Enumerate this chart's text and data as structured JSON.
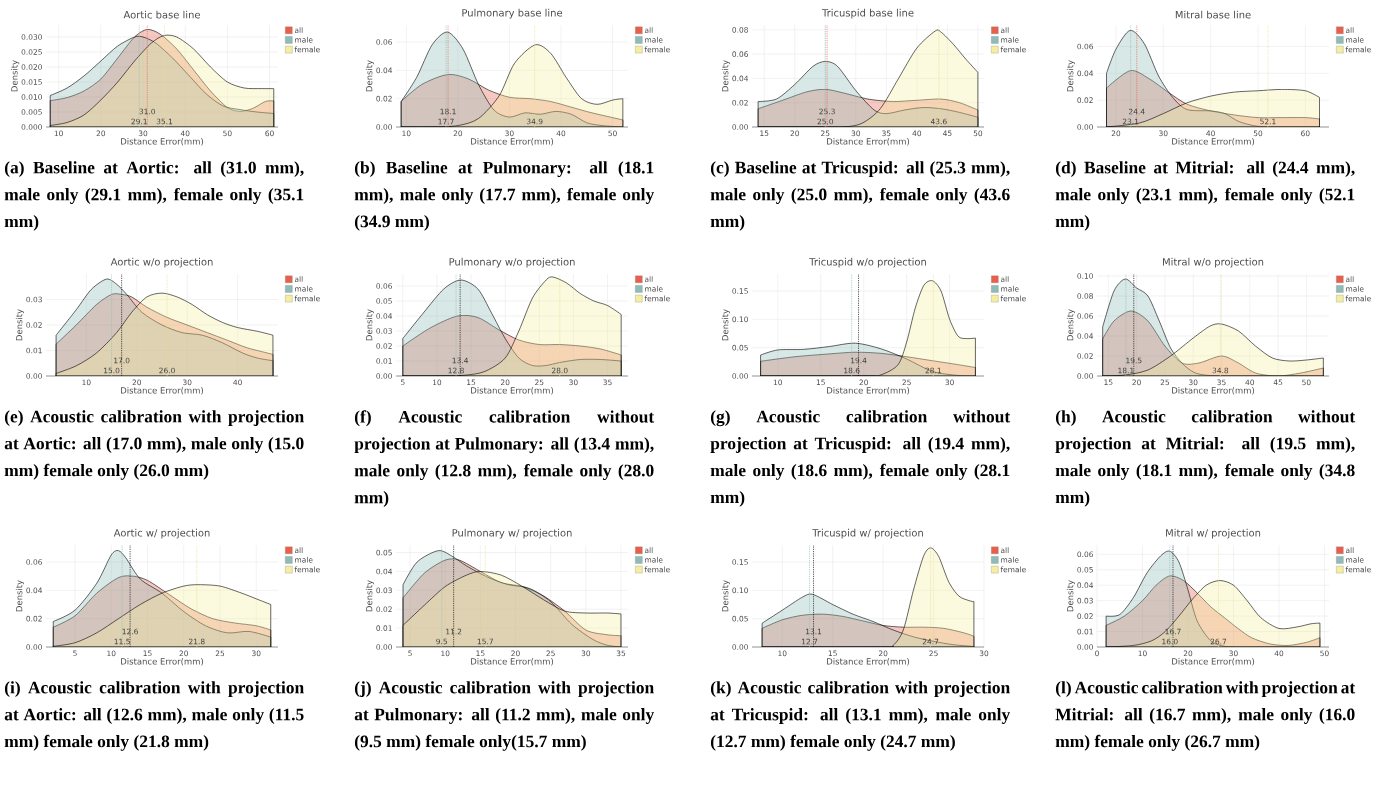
{
  "chart_data": [
    {
      "type": "area",
      "title": "Aortic base line",
      "xlabel": "Distance Error(mm)",
      "ylabel": "Density",
      "xlim": [
        7,
        62
      ],
      "ylim": [
        0,
        0.034
      ],
      "xticks": [
        10,
        20,
        30,
        40,
        50,
        60
      ],
      "yticks": [
        {
          "value": 0,
          "label": "0.000"
        },
        {
          "value": 0.005,
          "label": "0.005"
        },
        {
          "value": 0.01,
          "label": "0.010"
        },
        {
          "value": 0.015,
          "label": "0.015"
        },
        {
          "value": 0.02,
          "label": "0.020"
        },
        {
          "value": 0.025,
          "label": "0.025"
        },
        {
          "value": 0.03,
          "label": "0.030"
        }
      ],
      "grid": true,
      "legend": "top right",
      "series": [
        {
          "name": "all",
          "color": "#e8604c",
          "x": [
            8,
            12,
            16,
            20,
            24,
            28,
            31,
            34,
            38,
            42,
            46,
            50,
            53,
            56,
            59,
            61
          ],
          "values": [
            0.0088,
            0.0098,
            0.012,
            0.016,
            0.023,
            0.03,
            0.0325,
            0.031,
            0.026,
            0.019,
            0.012,
            0.0065,
            0.0052,
            0.0062,
            0.0085,
            0.0087
          ]
        },
        {
          "name": "male",
          "color": "#8fbcb6",
          "x": [
            8,
            12,
            16,
            20,
            24,
            28,
            30,
            33,
            37,
            41,
            45,
            49,
            53,
            57,
            61
          ],
          "values": [
            0.0105,
            0.013,
            0.017,
            0.022,
            0.027,
            0.03,
            0.03,
            0.028,
            0.023,
            0.017,
            0.011,
            0.007,
            0.0058,
            0.005,
            0.0045
          ]
        },
        {
          "name": "female",
          "color": "#f4eea0",
          "x": [
            8,
            12,
            16,
            20,
            24,
            28,
            32,
            35,
            38,
            42,
            46,
            50,
            54,
            58,
            61
          ],
          "values": [
            0.0005,
            0.0015,
            0.004,
            0.009,
            0.015,
            0.022,
            0.028,
            0.0305,
            0.03,
            0.026,
            0.02,
            0.015,
            0.013,
            0.0128,
            0.0128
          ]
        }
      ],
      "ref_lines": [
        {
          "axis": "x",
          "value": 31.0,
          "label": "31.0",
          "color": "#e8604c",
          "line_style": "dotted"
        },
        {
          "axis": "x",
          "value": 29.1,
          "label": "29.1",
          "color": "#8fbcb6",
          "line_style": "dotted"
        },
        {
          "axis": "x",
          "value": 35.1,
          "label": "35.1",
          "color": "#e6e08a",
          "line_style": "dotted"
        }
      ],
      "annotations": [
        "(a) Baseline at Aortic: all (31.0 mm), male only (29.1 mm), female only (35.1 mm)"
      ]
    },
    {
      "type": "area",
      "title": "Pulmonary base line",
      "xlabel": "Distance Error(mm)",
      "ylabel": "Density",
      "xlim": [
        8,
        53
      ],
      "ylim": [
        0,
        0.072
      ],
      "xticks": [
        10,
        20,
        30,
        40,
        50
      ],
      "yticks": [
        {
          "value": 0,
          "label": "0.00"
        },
        {
          "value": 0.02,
          "label": "0.02"
        },
        {
          "value": 0.04,
          "label": "0.04"
        },
        {
          "value": 0.06,
          "label": "0.06"
        }
      ],
      "grid": true,
      "legend": "top right",
      "series": [
        {
          "name": "all",
          "color": "#e8604c",
          "x": [
            9,
            13,
            18,
            22,
            26,
            30,
            34,
            38,
            42,
            46,
            52
          ],
          "values": [
            0.018,
            0.03,
            0.037,
            0.034,
            0.026,
            0.021,
            0.02,
            0.018,
            0.014,
            0.01,
            0.005
          ]
        },
        {
          "name": "male",
          "color": "#8fbcb6",
          "x": [
            9,
            12,
            15,
            18,
            21,
            24,
            27,
            30,
            33,
            36,
            39,
            42,
            45,
            48,
            52
          ],
          "values": [
            0.018,
            0.035,
            0.058,
            0.067,
            0.055,
            0.03,
            0.012,
            0.007,
            0.01,
            0.009,
            0.011,
            0.009,
            0.003,
            0.001,
            0.0
          ]
        },
        {
          "name": "female",
          "color": "#f4eea0",
          "x": [
            9,
            15,
            20,
            24,
            28,
            31,
            35,
            38,
            41,
            44,
            47,
            50,
            52
          ],
          "values": [
            0,
            0,
            0.001,
            0.006,
            0.022,
            0.045,
            0.058,
            0.052,
            0.035,
            0.02,
            0.016,
            0.019,
            0.02
          ]
        }
      ],
      "ref_lines": [
        {
          "axis": "x",
          "value": 18.1,
          "label": "18.1",
          "color": "#e8604c",
          "line_style": "dotted"
        },
        {
          "axis": "x",
          "value": 17.7,
          "label": "17.7",
          "color": "#8fbcb6",
          "line_style": "dotted"
        },
        {
          "axis": "x",
          "value": 34.9,
          "label": "34.9",
          "color": "#e6e08a",
          "line_style": "dotted"
        }
      ],
      "annotations": [
        "(b) Baseline at Pulmonary: all (18.1 mm), male only (17.7 mm), female only (34.9 mm)"
      ]
    },
    {
      "type": "area",
      "title": "Tricuspid base line",
      "xlabel": "Distance Error(mm)",
      "ylabel": "Density",
      "xlim": [
        13,
        51
      ],
      "ylim": [
        0,
        0.084
      ],
      "xticks": [
        15,
        20,
        25,
        30,
        35,
        40,
        45,
        50
      ],
      "yticks": [
        {
          "value": 0,
          "label": "0.00"
        },
        {
          "value": 0.02,
          "label": "0.02"
        },
        {
          "value": 0.04,
          "label": "0.04"
        },
        {
          "value": 0.06,
          "label": "0.06"
        },
        {
          "value": 0.08,
          "label": "0.08"
        }
      ],
      "grid": true,
      "legend": "top right",
      "series": [
        {
          "name": "all",
          "color": "#e8604c",
          "x": [
            14,
            18,
            22,
            25,
            28,
            32,
            36,
            40,
            44,
            47,
            50
          ],
          "values": [
            0.015,
            0.022,
            0.029,
            0.031,
            0.028,
            0.023,
            0.021,
            0.022,
            0.023,
            0.02,
            0.014
          ]
        },
        {
          "name": "male",
          "color": "#8fbcb6",
          "x": [
            14,
            17,
            20,
            23,
            25,
            27,
            30,
            33,
            35,
            38,
            41,
            44,
            47,
            50
          ],
          "values": [
            0.021,
            0.023,
            0.035,
            0.05,
            0.054,
            0.05,
            0.03,
            0.014,
            0.011,
            0.014,
            0.016,
            0.015,
            0.012,
            0.008
          ]
        },
        {
          "name": "female",
          "color": "#f4eea0",
          "x": [
            14,
            24,
            28,
            31,
            34,
            37,
            40,
            43,
            44,
            46,
            48,
            50
          ],
          "values": [
            0,
            0,
            0,
            0.003,
            0.015,
            0.04,
            0.065,
            0.079,
            0.078,
            0.068,
            0.056,
            0.045
          ]
        }
      ],
      "ref_lines": [
        {
          "axis": "x",
          "value": 25.3,
          "label": "25.3",
          "color": "#e8604c",
          "line_style": "dotted"
        },
        {
          "axis": "x",
          "value": 25.0,
          "label": "25.0",
          "color": "#8fbcb6",
          "line_style": "dotted"
        },
        {
          "axis": "x",
          "value": 43.6,
          "label": "43.6",
          "color": "#e6e08a",
          "line_style": "dotted"
        }
      ],
      "annotations": [
        "(c) Baseline at Tricuspid: all (25.3 mm), male only (25.0 mm), female only (43.6 mm)"
      ]
    },
    {
      "type": "area",
      "title": "Mitral base line",
      "xlabel": "Distance Error(mm)",
      "ylabel": "Density",
      "xlim": [
        16,
        65
      ],
      "ylim": [
        0,
        0.076
      ],
      "xticks": [
        20,
        30,
        40,
        50,
        60
      ],
      "yticks": [
        {
          "value": 0,
          "label": "0.00"
        },
        {
          "value": 0.02,
          "label": "0.02"
        },
        {
          "value": 0.04,
          "label": "0.04"
        },
        {
          "value": 0.06,
          "label": "0.06"
        }
      ],
      "grid": true,
      "legend": "top right",
      "series": [
        {
          "name": "all",
          "color": "#e8604c",
          "x": [
            18,
            23,
            27,
            31,
            35,
            40,
            45,
            50,
            55,
            60,
            63
          ],
          "values": [
            0.029,
            0.042,
            0.036,
            0.026,
            0.017,
            0.012,
            0.009,
            0.007,
            0.007,
            0.007,
            0.006
          ]
        },
        {
          "name": "male",
          "color": "#8fbcb6",
          "x": [
            18,
            20,
            23,
            26,
            29,
            32,
            35,
            40,
            43,
            46,
            50,
            55,
            60,
            63
          ],
          "values": [
            0.04,
            0.058,
            0.072,
            0.062,
            0.038,
            0.022,
            0.013,
            0.012,
            0.01,
            0.004,
            0.0005,
            0,
            0,
            0
          ]
        },
        {
          "name": "female",
          "color": "#f4eea0",
          "x": [
            18,
            25,
            30,
            35,
            40,
            45,
            50,
            55,
            60,
            63
          ],
          "values": [
            0.0,
            0.003,
            0.01,
            0.018,
            0.023,
            0.026,
            0.027,
            0.028,
            0.027,
            0.022
          ]
        }
      ],
      "ref_lines": [
        {
          "axis": "x",
          "value": 24.4,
          "label": "24.4",
          "color": "#e8604c",
          "line_style": "dotted"
        },
        {
          "axis": "x",
          "value": 23.1,
          "label": "23.1",
          "color": "#8fbcb6",
          "line_style": "dotted"
        },
        {
          "axis": "x",
          "value": 52.1,
          "label": "52.1",
          "color": "#e6e08a",
          "line_style": "dotted"
        }
      ],
      "annotations": [
        "(d) Baseline at Mitrial: all (24.4 mm), male only (23.1 mm), female only (52.1 mm)"
      ]
    },
    {
      "type": "area",
      "title": "Aortic w/o projection",
      "xlabel": "Distance Error(mm)",
      "ylabel": "Density",
      "xlim": [
        2,
        48
      ],
      "ylim": [
        0,
        0.04
      ],
      "xticks": [
        10,
        20,
        30,
        40
      ],
      "yticks": [
        {
          "value": 0,
          "label": "0.00"
        },
        {
          "value": 0.01,
          "label": "0.01"
        },
        {
          "value": 0.02,
          "label": "0.02"
        },
        {
          "value": 0.03,
          "label": "0.03"
        }
      ],
      "grid": true,
      "legend": "top right",
      "series": [
        {
          "name": "all",
          "color": "#e8604c",
          "x": [
            4,
            8,
            12,
            15,
            17,
            19,
            22,
            26,
            30,
            34,
            38,
            42,
            47
          ],
          "values": [
            0.0125,
            0.02,
            0.028,
            0.032,
            0.032,
            0.031,
            0.027,
            0.023,
            0.02,
            0.017,
            0.014,
            0.011,
            0.0085
          ]
        },
        {
          "name": "male",
          "color": "#8fbcb6",
          "x": [
            4,
            8,
            11,
            14,
            16,
            18,
            21,
            25,
            29,
            33,
            37,
            41,
            44,
            47
          ],
          "values": [
            0.016,
            0.026,
            0.034,
            0.038,
            0.036,
            0.032,
            0.025,
            0.02,
            0.017,
            0.016,
            0.013,
            0.009,
            0.007,
            0.006
          ]
        },
        {
          "name": "female",
          "color": "#f4eea0",
          "x": [
            4,
            8,
            12,
            16,
            19,
            22,
            25,
            28,
            31,
            34,
            37,
            40,
            44,
            47
          ],
          "values": [
            0.001,
            0.004,
            0.009,
            0.017,
            0.025,
            0.031,
            0.0325,
            0.031,
            0.028,
            0.024,
            0.021,
            0.019,
            0.0175,
            0.016
          ]
        }
      ],
      "ref_lines": [
        {
          "axis": "x",
          "value": 17.0,
          "label": "17.0",
          "color": "#000000",
          "line_style": "dotted"
        },
        {
          "axis": "x",
          "value": 15.0,
          "label": "15.0",
          "color": "#8fbcb6",
          "line_style": "dotted"
        },
        {
          "axis": "x",
          "value": 26.0,
          "label": "26.0",
          "color": "#e6e08a",
          "line_style": "dotted"
        }
      ],
      "annotations": [
        "(e) Acoustic calibration with projection at Aortic: all (17.0 mm), male only (15.0 mm) female only (26.0 mm)"
      ]
    },
    {
      "type": "area",
      "title": "Pulmonary w/o projection",
      "xlabel": "Distance Error(mm)",
      "ylabel": "Density",
      "xlim": [
        4,
        38
      ],
      "ylim": [
        0,
        0.068
      ],
      "xticks": [
        5,
        10,
        15,
        20,
        25,
        30,
        35
      ],
      "yticks": [
        {
          "value": 0,
          "label": "0.00"
        },
        {
          "value": 0.01,
          "label": "0.01"
        },
        {
          "value": 0.02,
          "label": "0.02"
        },
        {
          "value": 0.03,
          "label": "0.03"
        },
        {
          "value": 0.04,
          "label": "0.04"
        },
        {
          "value": 0.05,
          "label": "0.05"
        },
        {
          "value": 0.06,
          "label": "0.06"
        }
      ],
      "grid": true,
      "legend": "top right",
      "series": [
        {
          "name": "all",
          "color": "#e8604c",
          "x": [
            5,
            9,
            13,
            16,
            19,
            22,
            25,
            28,
            31,
            34,
            37
          ],
          "values": [
            0.02,
            0.032,
            0.04,
            0.039,
            0.031,
            0.024,
            0.021,
            0.021,
            0.02,
            0.018,
            0.014
          ]
        },
        {
          "name": "male",
          "color": "#8fbcb6",
          "x": [
            5,
            8,
            11,
            13.5,
            16,
            18,
            20,
            22,
            24,
            26,
            28,
            31,
            34,
            37
          ],
          "values": [
            0.025,
            0.042,
            0.058,
            0.064,
            0.058,
            0.042,
            0.025,
            0.012,
            0.007,
            0.007,
            0.009,
            0.011,
            0.011,
            0.01
          ]
        },
        {
          "name": "female",
          "color": "#f4eea0",
          "x": [
            5,
            10,
            14,
            17,
            20,
            22,
            24,
            26,
            27,
            29,
            31,
            33,
            35,
            37
          ],
          "values": [
            0,
            0,
            0.0005,
            0.003,
            0.012,
            0.03,
            0.052,
            0.064,
            0.066,
            0.062,
            0.055,
            0.05,
            0.047,
            0.041
          ]
        }
      ],
      "ref_lines": [
        {
          "axis": "x",
          "value": 13.4,
          "label": "13.4",
          "color": "#000000",
          "line_style": "dotted"
        },
        {
          "axis": "x",
          "value": 12.8,
          "label": "12.8",
          "color": "#8fbcb6",
          "line_style": "dotted"
        },
        {
          "axis": "x",
          "value": 28.0,
          "label": "28.0",
          "color": "#e6e08a",
          "line_style": "dotted"
        }
      ],
      "annotations": [
        "(f) Acoustic calibration without projection at Pulmonary: all (13.4 mm), male only (12.8 mm), female only (28.0 mm)"
      ]
    },
    {
      "type": "area",
      "title": "Tricuspid w/o projection",
      "xlabel": "Distance Error(mm)",
      "ylabel": "Density",
      "xlim": [
        7,
        34
      ],
      "ylim": [
        0,
        0.18
      ],
      "xticks": [
        10,
        15,
        20,
        25,
        30
      ],
      "yticks": [
        {
          "value": 0,
          "label": "0.00"
        },
        {
          "value": 0.05,
          "label": "0.05"
        },
        {
          "value": 0.1,
          "label": "0.10"
        },
        {
          "value": 0.15,
          "label": "0.15"
        }
      ],
      "grid": true,
      "legend": "top right",
      "series": [
        {
          "name": "all",
          "color": "#e8604c",
          "x": [
            8,
            12,
            16,
            19,
            22,
            25,
            28,
            31,
            33
          ],
          "values": [
            0.026,
            0.034,
            0.039,
            0.042,
            0.04,
            0.034,
            0.027,
            0.02,
            0.015
          ]
        },
        {
          "name": "male",
          "color": "#8fbcb6",
          "x": [
            8,
            10,
            13,
            16,
            19,
            22,
            25,
            28,
            31,
            33
          ],
          "values": [
            0.037,
            0.046,
            0.047,
            0.052,
            0.058,
            0.048,
            0.03,
            0.008,
            0.001,
            0
          ]
        },
        {
          "name": "female",
          "color": "#f4eea0",
          "x": [
            8,
            20,
            22,
            24,
            25,
            26,
            27,
            28,
            29,
            30,
            31,
            32,
            33
          ],
          "values": [
            0,
            0,
            0.002,
            0.02,
            0.06,
            0.12,
            0.16,
            0.168,
            0.15,
            0.1,
            0.07,
            0.066,
            0.067
          ]
        }
      ],
      "ref_lines": [
        {
          "axis": "x",
          "value": 19.4,
          "label": "19.4",
          "color": "#000000",
          "line_style": "dotted"
        },
        {
          "axis": "x",
          "value": 18.6,
          "label": "18.6",
          "color": "#8fbcb6",
          "line_style": "dotted"
        },
        {
          "axis": "x",
          "value": 28.1,
          "label": "28.1",
          "color": "#e6e08a",
          "line_style": "dotted"
        }
      ],
      "annotations": [
        "(g) Acoustic calibration without projection at Tricuspid: all (19.4 mm), male only (18.6 mm), female only (28.1 mm)"
      ]
    },
    {
      "type": "area",
      "title": "Mitral w/o projection",
      "xlabel": "Distance Error(mm)",
      "ylabel": "Density",
      "xlim": [
        13,
        54
      ],
      "ylim": [
        0,
        0.102
      ],
      "xticks": [
        15,
        20,
        25,
        30,
        35,
        40,
        45,
        50
      ],
      "yticks": [
        {
          "value": 0,
          "label": "0.00"
        },
        {
          "value": 0.02,
          "label": "0.02"
        },
        {
          "value": 0.04,
          "label": "0.04"
        },
        {
          "value": 0.06,
          "label": "0.06"
        },
        {
          "value": 0.08,
          "label": "0.08"
        },
        {
          "value": 0.1,
          "label": "0.10"
        }
      ],
      "grid": true,
      "legend": "top right",
      "series": [
        {
          "name": "all",
          "color": "#e8604c",
          "x": [
            14,
            16,
            19,
            22,
            25,
            28,
            31,
            35,
            38,
            41,
            45,
            49,
            53
          ],
          "values": [
            0.037,
            0.055,
            0.065,
            0.055,
            0.03,
            0.013,
            0.013,
            0.02,
            0.013,
            0.003,
            0.0,
            0.003,
            0.008
          ]
        },
        {
          "name": "male",
          "color": "#8fbcb6",
          "x": [
            14,
            16,
            18,
            20,
            22,
            24,
            26,
            28,
            30,
            32,
            35,
            38,
            41,
            45,
            49,
            53
          ],
          "values": [
            0.049,
            0.085,
            0.097,
            0.088,
            0.08,
            0.055,
            0.028,
            0.013,
            0.004,
            0.001,
            0,
            0,
            0,
            0,
            0,
            0
          ]
        },
        {
          "name": "female",
          "color": "#f4eea0",
          "x": [
            14,
            18,
            22,
            26,
            30,
            33,
            35,
            38,
            41,
            44,
            47,
            50,
            53
          ],
          "values": [
            0,
            0.001,
            0.006,
            0.02,
            0.038,
            0.05,
            0.052,
            0.045,
            0.03,
            0.018,
            0.015,
            0.016,
            0.018
          ]
        }
      ],
      "ref_lines": [
        {
          "axis": "x",
          "value": 19.5,
          "label": "19.5",
          "color": "#000000",
          "line_style": "dotted"
        },
        {
          "axis": "x",
          "value": 18.1,
          "label": "18.1",
          "color": "#8fbcb6",
          "line_style": "dotted"
        },
        {
          "axis": "x",
          "value": 34.8,
          "label": "34.8",
          "color": "#e6e08a",
          "line_style": "dotted"
        }
      ],
      "annotations": [
        "(h) Acoustic calibration without projection at Mitrial: all (19.5 mm), male only (18.1 mm), female only (34.8 mm)"
      ]
    },
    {
      "type": "area",
      "title": "Aortic w/ projection",
      "xlabel": "Distance Error(mm)",
      "ylabel": "Density",
      "xlim": [
        1,
        33
      ],
      "ylim": [
        0,
        0.072
      ],
      "xticks": [
        5,
        10,
        15,
        20,
        25,
        30
      ],
      "yticks": [
        {
          "value": 0,
          "label": "0.00"
        },
        {
          "value": 0.02,
          "label": "0.02"
        },
        {
          "value": 0.04,
          "label": "0.04"
        },
        {
          "value": 0.06,
          "label": "0.06"
        }
      ],
      "grid": true,
      "legend": "top right",
      "series": [
        {
          "name": "all",
          "color": "#e8604c",
          "x": [
            2,
            5,
            8,
            11,
            13,
            15,
            18,
            21,
            24,
            27,
            30,
            32
          ],
          "values": [
            0.014,
            0.022,
            0.038,
            0.049,
            0.05,
            0.047,
            0.037,
            0.027,
            0.02,
            0.017,
            0.015,
            0.012
          ]
        },
        {
          "name": "male",
          "color": "#8fbcb6",
          "x": [
            2,
            5,
            8,
            10,
            11,
            12,
            14,
            17,
            20,
            23,
            26,
            29,
            32
          ],
          "values": [
            0.018,
            0.026,
            0.045,
            0.065,
            0.068,
            0.063,
            0.048,
            0.038,
            0.025,
            0.015,
            0.01,
            0.011,
            0.007
          ]
        },
        {
          "name": "female",
          "color": "#f4eea0",
          "x": [
            2,
            5,
            8,
            11,
            14,
            17,
            20,
            22,
            25,
            28,
            30,
            32
          ],
          "values": [
            0.0005,
            0.003,
            0.01,
            0.02,
            0.03,
            0.038,
            0.043,
            0.044,
            0.043,
            0.038,
            0.034,
            0.03
          ]
        }
      ],
      "ref_lines": [
        {
          "axis": "x",
          "value": 12.6,
          "label": "12.6",
          "color": "#000000",
          "line_style": "dotted"
        },
        {
          "axis": "x",
          "value": 11.5,
          "label": "11.5",
          "color": "#8fbcb6",
          "line_style": "dotted"
        },
        {
          "axis": "x",
          "value": 21.8,
          "label": "21.8",
          "color": "#e6e08a",
          "line_style": "dotted"
        }
      ],
      "annotations": [
        "(i) Acoustic calibration with projection at Aortic: all (12.6 mm), male only (11.5 mm) female only (21.8 mm)"
      ]
    },
    {
      "type": "area",
      "title": "Pulmonary w/ projection",
      "xlabel": "Distance Error(mm)",
      "ylabel": "Density",
      "xlim": [
        3,
        36
      ],
      "ylim": [
        0,
        0.054
      ],
      "xticks": [
        5,
        10,
        15,
        20,
        25,
        30,
        35
      ],
      "yticks": [
        {
          "value": 0,
          "label": "0.00"
        },
        {
          "value": 0.01,
          "label": "0.01"
        },
        {
          "value": 0.02,
          "label": "0.02"
        },
        {
          "value": 0.03,
          "label": "0.03"
        },
        {
          "value": 0.04,
          "label": "0.04"
        },
        {
          "value": 0.05,
          "label": "0.05"
        }
      ],
      "grid": true,
      "legend": "top right",
      "series": [
        {
          "name": "all",
          "color": "#e8604c",
          "x": [
            4,
            7,
            10,
            12,
            15,
            18,
            21,
            24,
            27,
            30,
            33,
            35
          ],
          "values": [
            0.026,
            0.039,
            0.046,
            0.046,
            0.04,
            0.034,
            0.032,
            0.027,
            0.019,
            0.009,
            0.0065,
            0.006
          ]
        },
        {
          "name": "male",
          "color": "#8fbcb6",
          "x": [
            4,
            6,
            9,
            11,
            13,
            16,
            19,
            22,
            25,
            28,
            31,
            33,
            35
          ],
          "values": [
            0.033,
            0.045,
            0.051,
            0.048,
            0.043,
            0.037,
            0.033,
            0.031,
            0.024,
            0.012,
            0.004,
            0.001,
            0
          ]
        },
        {
          "name": "female",
          "color": "#f4eea0",
          "x": [
            4,
            7,
            10,
            13,
            15,
            18,
            21,
            24,
            27,
            30,
            33,
            35
          ],
          "values": [
            0.0115,
            0.022,
            0.032,
            0.038,
            0.04,
            0.038,
            0.032,
            0.025,
            0.019,
            0.018,
            0.018,
            0.0175
          ]
        }
      ],
      "ref_lines": [
        {
          "axis": "x",
          "value": 11.2,
          "label": "11.2",
          "color": "#000000",
          "line_style": "dotted"
        },
        {
          "axis": "x",
          "value": 9.5,
          "label": "9.5",
          "color": "#8fbcb6",
          "line_style": "dotted"
        },
        {
          "axis": "x",
          "value": 15.7,
          "label": "15.7",
          "color": "#e6e08a",
          "line_style": "dotted"
        }
      ],
      "annotations": [
        "(j) Acoustic calibration with projection at Pulmonary: all (11.2 mm), male only (9.5 mm) female only(15.7 mm)"
      ]
    },
    {
      "type": "area",
      "title": "Tricuspid w/ projection",
      "xlabel": "Distance Error(mm)",
      "ylabel": "Density",
      "xlim": [
        7,
        30
      ],
      "ylim": [
        0,
        0.18
      ],
      "xticks": [
        10,
        15,
        20,
        25,
        30
      ],
      "yticks": [
        {
          "value": 0,
          "label": "0.00"
        },
        {
          "value": 0.05,
          "label": "0.05"
        },
        {
          "value": 0.1,
          "label": "0.10"
        },
        {
          "value": 0.15,
          "label": "0.15"
        }
      ],
      "grid": true,
      "legend": "top right",
      "series": [
        {
          "name": "all",
          "color": "#e8604c",
          "x": [
            8,
            10,
            12,
            14,
            16,
            18,
            20,
            22,
            24,
            26,
            28,
            29
          ],
          "values": [
            0.033,
            0.048,
            0.056,
            0.058,
            0.054,
            0.046,
            0.038,
            0.035,
            0.035,
            0.033,
            0.025,
            0.019
          ]
        },
        {
          "name": "male",
          "color": "#8fbcb6",
          "x": [
            8,
            10,
            12,
            13,
            15,
            17,
            19,
            21,
            23,
            25,
            27,
            29
          ],
          "values": [
            0.042,
            0.065,
            0.088,
            0.093,
            0.075,
            0.058,
            0.045,
            0.03,
            0.018,
            0.01,
            0.004,
            0.001
          ]
        },
        {
          "name": "female",
          "color": "#f4eea0",
          "x": [
            8,
            20,
            21,
            22,
            23,
            24,
            24.7,
            25.5,
            26.5,
            27.5,
            28.5,
            29
          ],
          "values": [
            0,
            0,
            0.003,
            0.03,
            0.1,
            0.16,
            0.175,
            0.16,
            0.115,
            0.09,
            0.082,
            0.08
          ]
        }
      ],
      "ref_lines": [
        {
          "axis": "x",
          "value": 13.1,
          "label": "13.1",
          "color": "#000000",
          "line_style": "dotted"
        },
        {
          "axis": "x",
          "value": 12.7,
          "label": "12.7",
          "color": "#8fbcb6",
          "line_style": "dotted"
        },
        {
          "axis": "x",
          "value": 24.7,
          "label": "24.7",
          "color": "#e6e08a",
          "line_style": "dotted"
        }
      ],
      "annotations": [
        "(k) Acoustic calibration with projection at Tricuspid: all (13.1 mm), male only (12.7 mm) female only (24.7 mm)"
      ]
    },
    {
      "type": "area",
      "title": "Mitral w/ projection",
      "xlabel": "Distance Error(mm)",
      "ylabel": "Density",
      "xlim": [
        0,
        51
      ],
      "ylim": [
        0,
        0.066
      ],
      "xticks": [
        0,
        10,
        20,
        30,
        40,
        50
      ],
      "yticks": [
        {
          "value": 0,
          "label": "0.00"
        },
        {
          "value": 0.01,
          "label": "0.01"
        },
        {
          "value": 0.02,
          "label": "0.02"
        },
        {
          "value": 0.03,
          "label": "0.03"
        },
        {
          "value": 0.04,
          "label": "0.04"
        },
        {
          "value": 0.05,
          "label": "0.05"
        },
        {
          "value": 0.06,
          "label": "0.06"
        }
      ],
      "grid": true,
      "legend": "top right",
      "series": [
        {
          "name": "all",
          "color": "#e8604c",
          "x": [
            2,
            6,
            10,
            13,
            16,
            19,
            22,
            25,
            28,
            31,
            34,
            38,
            42,
            46,
            49
          ],
          "values": [
            0.014,
            0.02,
            0.03,
            0.04,
            0.046,
            0.043,
            0.035,
            0.026,
            0.019,
            0.012,
            0.006,
            0.002,
            0.001,
            0.003,
            0.006
          ]
        },
        {
          "name": "male",
          "color": "#8fbcb6",
          "x": [
            2,
            5,
            8,
            11,
            14,
            16,
            18,
            20,
            22,
            25,
            28,
            31,
            35,
            40,
            45,
            49
          ],
          "values": [
            0.02,
            0.021,
            0.032,
            0.048,
            0.059,
            0.062,
            0.055,
            0.037,
            0.017,
            0.004,
            0.0005,
            0,
            0,
            0,
            0,
            0
          ]
        },
        {
          "name": "female",
          "color": "#f4eea0",
          "x": [
            2,
            8,
            12,
            15,
            18,
            21,
            24,
            27,
            30,
            33,
            36,
            40,
            44,
            47,
            49
          ],
          "values": [
            0,
            0.001,
            0.004,
            0.01,
            0.02,
            0.031,
            0.04,
            0.043,
            0.04,
            0.03,
            0.019,
            0.012,
            0.013,
            0.015,
            0.0155
          ]
        }
      ],
      "ref_lines": [
        {
          "axis": "x",
          "value": 16.7,
          "label": "16.7",
          "color": "#000000",
          "line_style": "dotted"
        },
        {
          "axis": "x",
          "value": 16.0,
          "label": "16.0",
          "color": "#8fbcb6",
          "line_style": "dotted"
        },
        {
          "axis": "x",
          "value": 26.7,
          "label": "26.7",
          "color": "#e6e08a",
          "line_style": "dotted"
        }
      ],
      "annotations": [
        "(l) Acoustic calibration with projection at Mitrial: all (16.7 mm), male only (16.0 mm) female only (26.7 mm)"
      ]
    }
  ]
}
